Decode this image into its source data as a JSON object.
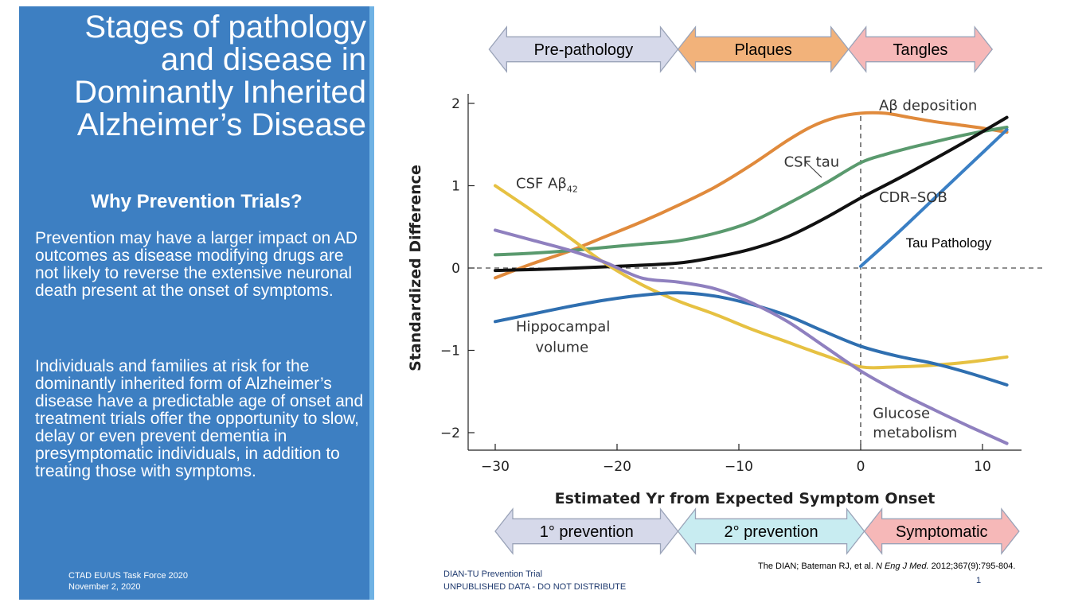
{
  "slide": {
    "title": "Stages of pathology and disease in Dominantly Inherited Alzheimer’s Disease",
    "heading": "Why Prevention Trials?",
    "paragraph1": "Prevention may have a larger impact on AD outcomes as disease modifying drugs are not likely to reverse the extensive neuronal death present at the onset of symptoms.",
    "paragraph2": "Individuals and families at risk for the dominantly inherited form of Alzheimer’s disease have a predictable age of onset and treatment trials offer the opportunity to slow, delay or even prevent dementia in presymptomatic individuals, in addition to treating those with symptoms.",
    "conference_line1": "CTAD EU/US Task Force 2020",
    "conference_line2": "November 2, 2020",
    "footer_left_line1": "DIAN-TU Prevention Trial",
    "footer_left_line2": "UNPUBLISHED DATA - DO NOT DISTRIBUTE",
    "citation": "The DIAN; Bateman RJ, et al. N Eng J Med. 2012;367(9):795-804.",
    "page_number": "1",
    "panel_color": "#3d7fc2"
  },
  "stage_arrows_top": [
    {
      "label": "Pre-pathology",
      "from": -30.5,
      "to": -15,
      "color": "#d6d9ea"
    },
    {
      "label": "Plaques",
      "from": -15,
      "to": -1,
      "color": "#f2b27a"
    },
    {
      "label": "Tangles",
      "from": -1,
      "to": 10.8,
      "color": "#f6b8b8"
    }
  ],
  "stage_arrows_bottom": [
    {
      "label": "1° prevention",
      "from": -30,
      "to": -15,
      "color": "#d6d9ea"
    },
    {
      "label": "2° prevention",
      "from": -15,
      "to": 0.3,
      "color": "#c8ecf1"
    },
    {
      "label": "Symptomatic",
      "from": 0.3,
      "to": 13,
      "color": "#f6b8b8"
    }
  ],
  "chart_data": {
    "type": "line",
    "title": "",
    "xlabel": "Estimated Yr from Expected Symptom Onset",
    "ylabel": "Standardized Difference",
    "xlim": [
      -31,
      13
    ],
    "ylim": [
      -2.2,
      2.1
    ],
    "xticks": [
      -30,
      -20,
      -10,
      0,
      10
    ],
    "xtick_labels": [
      "−30",
      "−20",
      "−10",
      "0",
      "10"
    ],
    "yticks": [
      -2,
      -1,
      0,
      1,
      2
    ],
    "ytick_labels": [
      "−2",
      "−1",
      "0",
      "1",
      "2"
    ],
    "grid": false,
    "reference_lines": {
      "x": 0,
      "y": 0,
      "style": "dashed"
    },
    "series": [
      {
        "name": "Aβ deposition",
        "color": "#e08a3c",
        "x": [
          -30,
          -27,
          -24,
          -21,
          -18,
          -15,
          -12,
          -9,
          -6,
          -4,
          -2,
          0,
          2,
          4,
          6,
          8,
          10,
          12
        ],
        "y": [
          -0.12,
          0.05,
          0.2,
          0.38,
          0.56,
          0.76,
          0.98,
          1.25,
          1.55,
          1.72,
          1.83,
          1.88,
          1.88,
          1.83,
          1.78,
          1.74,
          1.7,
          1.65
        ]
      },
      {
        "name": "CSF tau",
        "color": "#5a9a6e",
        "x": [
          -30,
          -27,
          -24,
          -21,
          -18,
          -15,
          -12,
          -9,
          -6,
          -3,
          0,
          2,
          4,
          6,
          8,
          10,
          12
        ],
        "y": [
          0.16,
          0.18,
          0.21,
          0.25,
          0.29,
          0.33,
          0.42,
          0.56,
          0.78,
          1.02,
          1.28,
          1.38,
          1.46,
          1.53,
          1.6,
          1.66,
          1.71
        ]
      },
      {
        "name": "CDR–SOB",
        "color": "#111111",
        "x": [
          -30,
          -25,
          -20,
          -15,
          -12,
          -9,
          -6,
          -3,
          0,
          3,
          6,
          9,
          12
        ],
        "y": [
          -0.03,
          -0.01,
          0.02,
          0.06,
          0.13,
          0.23,
          0.38,
          0.6,
          0.85,
          1.08,
          1.32,
          1.57,
          1.83
        ]
      },
      {
        "name": "Tau Pathology",
        "color": "#3a7fc4",
        "x": [
          0,
          3,
          6,
          9,
          12
        ],
        "y": [
          0.02,
          0.42,
          0.84,
          1.26,
          1.68
        ]
      },
      {
        "name": "CSF Aβ42",
        "color": "#e6c142",
        "x": [
          -30,
          -27,
          -24,
          -21,
          -18,
          -15,
          -12,
          -9,
          -6,
          -3,
          0,
          3,
          6,
          9,
          12
        ],
        "y": [
          1.0,
          0.7,
          0.38,
          0.06,
          -0.2,
          -0.4,
          -0.56,
          -0.74,
          -0.9,
          -1.06,
          -1.2,
          -1.2,
          -1.18,
          -1.14,
          -1.08
        ]
      },
      {
        "name": "Hippocampal volume",
        "color": "#2f6fb0",
        "x": [
          -30,
          -27,
          -24,
          -21,
          -18,
          -15,
          -12,
          -9,
          -6,
          -3,
          0,
          3,
          6,
          9,
          12
        ],
        "y": [
          -0.65,
          -0.56,
          -0.47,
          -0.39,
          -0.33,
          -0.3,
          -0.34,
          -0.44,
          -0.58,
          -0.77,
          -0.95,
          -1.07,
          -1.16,
          -1.28,
          -1.42
        ]
      },
      {
        "name": "Glucose metabolism",
        "color": "#8f80bf",
        "x": [
          -30,
          -27,
          -24,
          -21,
          -18,
          -15,
          -12,
          -9,
          -6,
          -3,
          0,
          3,
          6,
          9,
          12
        ],
        "y": [
          0.46,
          0.34,
          0.22,
          0.07,
          -0.12,
          -0.17,
          -0.25,
          -0.42,
          -0.65,
          -0.95,
          -1.25,
          -1.5,
          -1.72,
          -1.93,
          -2.13
        ]
      }
    ],
    "annotations": [
      {
        "text": "Aβ deposition",
        "x": 1.5,
        "y": 1.92
      },
      {
        "text": "CSF tau",
        "x": -6.3,
        "y": 1.23
      },
      {
        "text": "CDR–SOB",
        "x": 1.5,
        "y": 0.8
      },
      {
        "text": "Tau Pathology",
        "x": 3.7,
        "y": 0.25
      },
      {
        "text": "CSF Aβ42",
        "x": -28.3,
        "y": 0.97
      },
      {
        "text": "Hippocampal",
        "x": -28.3,
        "y": -0.77
      },
      {
        "text": "volume",
        "x": -26.7,
        "y": -1.02
      },
      {
        "text": "Glucose",
        "x": 1,
        "y": -1.82
      },
      {
        "text": "metabolism",
        "x": 1,
        "y": -2.06
      }
    ]
  }
}
